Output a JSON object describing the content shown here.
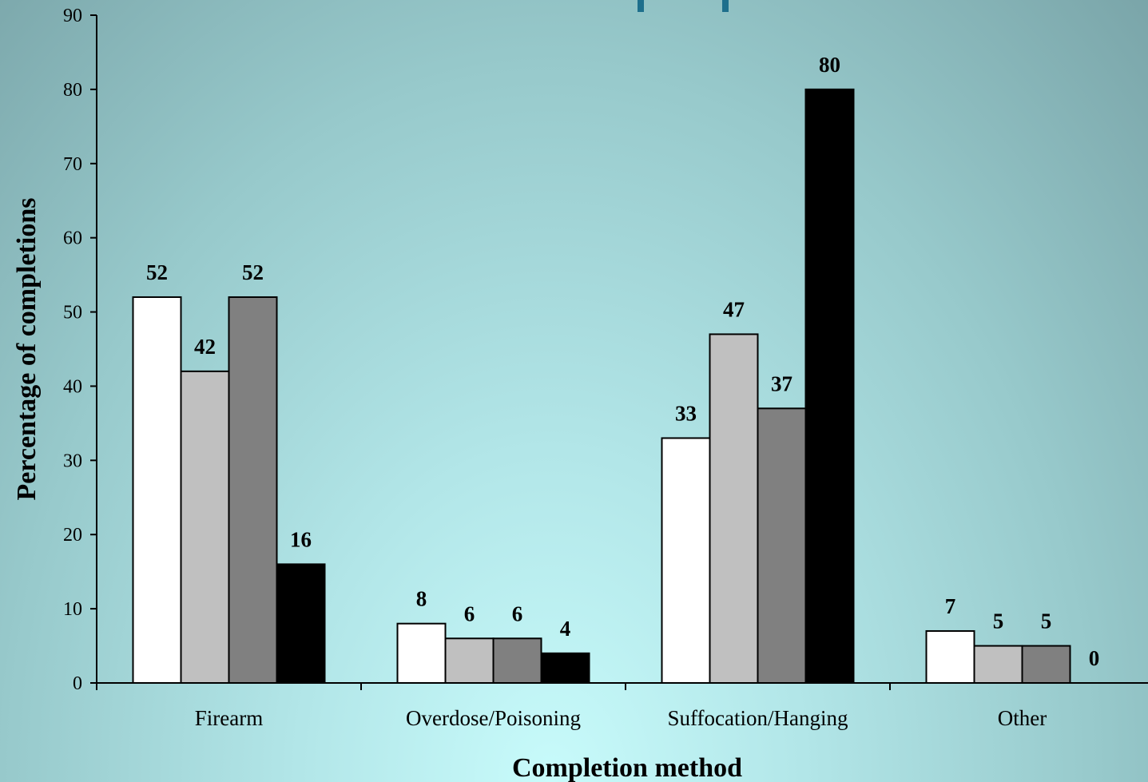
{
  "chart_data": {
    "type": "bar",
    "title": "",
    "xlabel": "Completion method",
    "ylabel": "Percentage of completions",
    "ylim": [
      0,
      90
    ],
    "yticks": [
      0,
      10,
      20,
      30,
      40,
      50,
      60,
      70,
      80,
      90
    ],
    "categories": [
      "Firearm",
      "Overdose/Poisoning",
      "Suffocation/Hanging",
      "Other"
    ],
    "series": [
      {
        "values": [
          52,
          8,
          33,
          7
        ],
        "color": "#ffffff"
      },
      {
        "values": [
          42,
          6,
          47,
          5
        ],
        "color": "#c0c0c0"
      },
      {
        "values": [
          52,
          6,
          37,
          5
        ],
        "color": "#808080"
      },
      {
        "values": [
          16,
          4,
          80,
          0
        ],
        "color": "#000000"
      }
    ],
    "grid": false,
    "legend": "none"
  }
}
